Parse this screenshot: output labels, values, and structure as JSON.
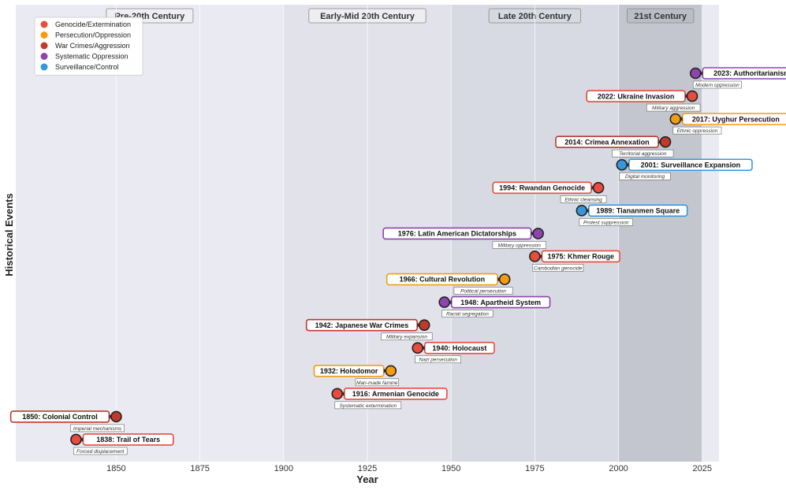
{
  "chart_data": {
    "type": "scatter",
    "xlabel": "Year",
    "ylabel": "Historical Events",
    "xlim": [
      1820,
      2030
    ],
    "x_ticks": [
      1850,
      1875,
      1900,
      1925,
      1950,
      1975,
      2000,
      2025
    ],
    "grid": true,
    "legend_position": "top-left",
    "categories": [
      {
        "key": "genocide",
        "name": "Genocide/Extermination",
        "color": "#e74c3c"
      },
      {
        "key": "persecution",
        "name": "Persecution/Oppression",
        "color": "#f39c12"
      },
      {
        "key": "war",
        "name": "War Crimes/Aggression",
        "color": "#c0392b"
      },
      {
        "key": "systematic",
        "name": "Systematic Oppression",
        "color": "#8e44ad"
      },
      {
        "key": "surveillance",
        "name": "Surveillance/Control",
        "color": "#3498db"
      }
    ],
    "eras": [
      {
        "label": "Pre-20th Century",
        "start": 1820,
        "end": 1900
      },
      {
        "label": "Early-Mid 20th Century",
        "start": 1900,
        "end": 1950
      },
      {
        "label": "Late 20th Century",
        "start": 1950,
        "end": 2000
      },
      {
        "label": "21st Century",
        "start": 2000,
        "end": 2025
      }
    ],
    "events": [
      {
        "year": 1838,
        "label": "1838: Trail of Tears",
        "annotation": "Forced displacement",
        "category": "genocide",
        "side": "right"
      },
      {
        "year": 1850,
        "label": "1850: Colonial Control",
        "annotation": "Imperial mechanisms",
        "category": "war",
        "side": "left"
      },
      {
        "year": 1916,
        "label": "1916: Armenian Genocide",
        "annotation": "Systematic extermination",
        "category": "genocide",
        "side": "right"
      },
      {
        "year": 1932,
        "label": "1932: Holodomor",
        "annotation": "Man-made famine",
        "category": "persecution",
        "side": "left"
      },
      {
        "year": 1940,
        "label": "1940: Holocaust",
        "annotation": "Nazi persecution",
        "category": "genocide",
        "side": "right"
      },
      {
        "year": 1942,
        "label": "1942: Japanese War Crimes",
        "annotation": "Military expansion",
        "category": "war",
        "side": "left"
      },
      {
        "year": 1948,
        "label": "1948: Apartheid System",
        "annotation": "Racial segregation",
        "category": "systematic",
        "side": "right"
      },
      {
        "year": 1966,
        "label": "1966: Cultural Revolution",
        "annotation": "Political persecution",
        "category": "persecution",
        "side": "left"
      },
      {
        "year": 1975,
        "label": "1975: Khmer Rouge",
        "annotation": "Cambodian genocide",
        "category": "genocide",
        "side": "right"
      },
      {
        "year": 1976,
        "label": "1976: Latin American Dictatorships",
        "annotation": "Military oppression",
        "category": "systematic",
        "side": "left"
      },
      {
        "year": 1989,
        "label": "1989: Tiananmen Square",
        "annotation": "Protest suppression",
        "category": "surveillance",
        "side": "right"
      },
      {
        "year": 1994,
        "label": "1994: Rwandan Genocide",
        "annotation": "Ethnic cleansing",
        "category": "genocide",
        "side": "left"
      },
      {
        "year": 2001,
        "label": "2001: Surveillance Expansion",
        "annotation": "Digital monitoring",
        "category": "surveillance",
        "side": "right"
      },
      {
        "year": 2014,
        "label": "2014: Crimea Annexation",
        "annotation": "Territorial aggression",
        "category": "war",
        "side": "left"
      },
      {
        "year": 2017,
        "label": "2017: Uyghur Persecution",
        "annotation": "Ethnic oppression",
        "category": "persecution",
        "side": "right"
      },
      {
        "year": 2022,
        "label": "2022: Ukraine Invasion",
        "annotation": "Military aggression",
        "category": "genocide",
        "side": "left"
      },
      {
        "year": 2023,
        "label": "2023: Authoritarianism",
        "annotation": "Modern oppression",
        "category": "systematic",
        "side": "right"
      }
    ]
  }
}
